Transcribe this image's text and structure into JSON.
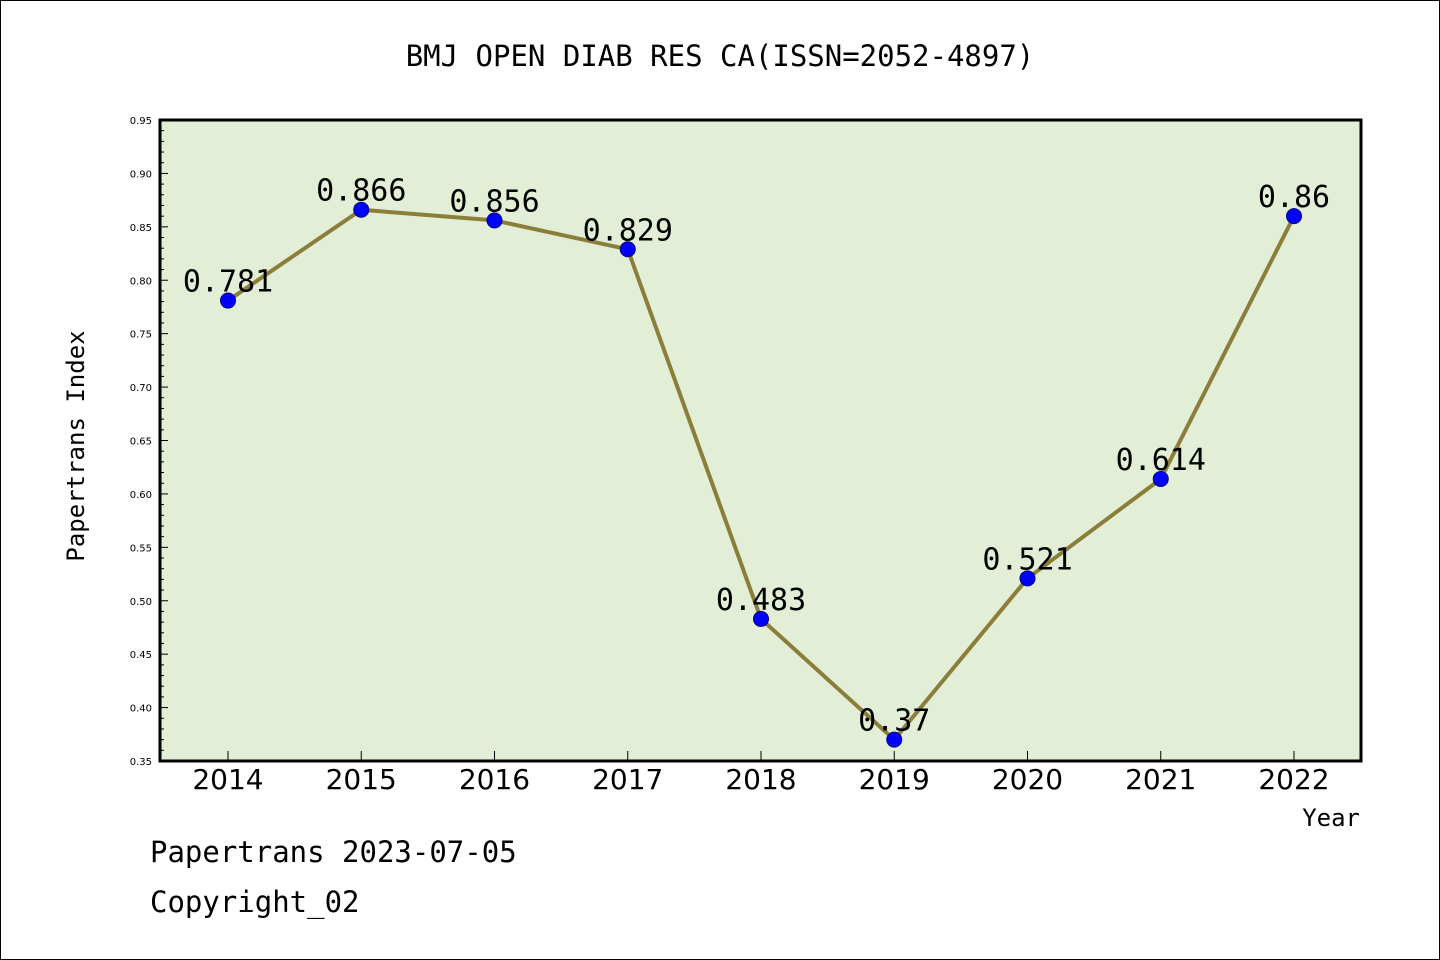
{
  "chart_data": {
    "type": "line",
    "title": "BMJ OPEN DIAB RES CA(ISSN=2052-4897)",
    "xlabel": "Year",
    "ylabel": "Papertrans Index",
    "categories": [
      "2014",
      "2015",
      "2016",
      "2017",
      "2018",
      "2019",
      "2020",
      "2021",
      "2022"
    ],
    "series": [
      {
        "values": [
          0.781,
          0.866,
          0.856,
          0.829,
          0.483,
          0.37,
          0.521,
          0.614,
          0.86
        ],
        "labels": [
          "0.781",
          "0.866",
          "0.856",
          "0.829",
          "0.483",
          "0.37",
          "0.521",
          "0.614",
          "0.86"
        ]
      }
    ],
    "ylim": [
      0.35,
      0.95
    ],
    "yticks": [
      "0.35",
      "0.40",
      "0.45",
      "0.50",
      "0.55",
      "0.60",
      "0.65",
      "0.70",
      "0.75",
      "0.80",
      "0.85",
      "0.90",
      "0.95"
    ],
    "grid": false,
    "colors": {
      "plot_background": "#e2efd6",
      "line": "#8b7d3a",
      "marker": "#0000ff"
    }
  },
  "footer": {
    "line1": "Papertrans 2023-07-05",
    "line2": "Copyright_02"
  }
}
